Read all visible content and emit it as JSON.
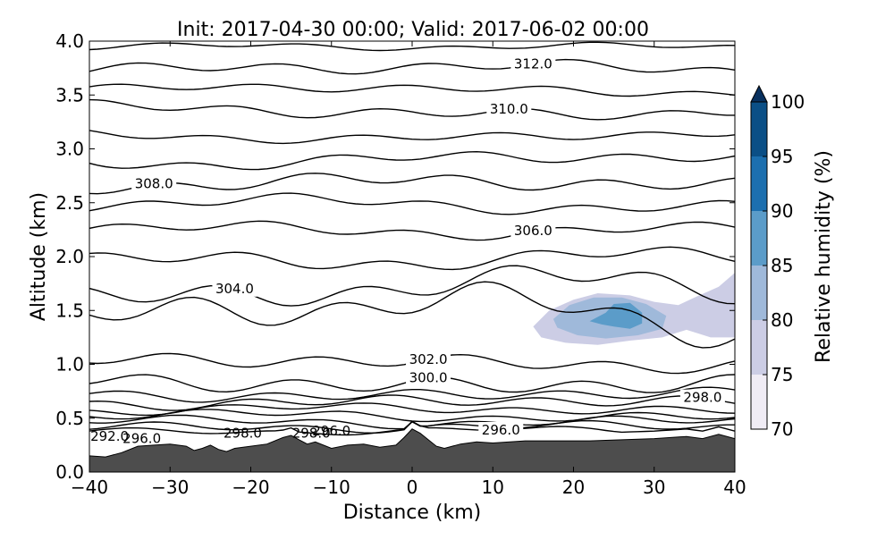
{
  "chart_data": {
    "type": "contour",
    "title": "Init: 2017-04-30 00:00; Valid: 2017-06-02 00:00",
    "xlabel": "Distance (km)",
    "ylabel": "Altitude (km)",
    "xlim": [
      -40,
      40
    ],
    "ylim": [
      0,
      4
    ],
    "xticks": [
      "−40",
      "−30",
      "−20",
      "−10",
      "0",
      "10",
      "20",
      "30",
      "40"
    ],
    "yticks": [
      "0.0",
      "0.5",
      "1.0",
      "1.5",
      "2.0",
      "2.5",
      "3.0",
      "3.5",
      "4.0"
    ],
    "colorbar": {
      "label": "Relative humidity (%)",
      "ticks": [
        "70",
        "75",
        "80",
        "85",
        "90",
        "95",
        "100"
      ],
      "levels": [
        70,
        75,
        80,
        85,
        90,
        95,
        100
      ],
      "colors": [
        "#f0ecf5",
        "#cccde5",
        "#9fb9da",
        "#5b9cc9",
        "#1c6faf",
        "#0b4f86"
      ],
      "extend_color": "#08305e"
    },
    "terrain_color": "#4d4d4d",
    "terrain": [
      [
        -40,
        0.15
      ],
      [
        -38,
        0.14
      ],
      [
        -36,
        0.18
      ],
      [
        -34,
        0.24
      ],
      [
        -32,
        0.25
      ],
      [
        -30,
        0.26
      ],
      [
        -28,
        0.24
      ],
      [
        -27,
        0.2
      ],
      [
        -26,
        0.22
      ],
      [
        -25,
        0.25
      ],
      [
        -24,
        0.21
      ],
      [
        -23,
        0.19
      ],
      [
        -22,
        0.22
      ],
      [
        -20,
        0.24
      ],
      [
        -18,
        0.26
      ],
      [
        -16,
        0.32
      ],
      [
        -15,
        0.34
      ],
      [
        -14,
        0.3
      ],
      [
        -13,
        0.26
      ],
      [
        -12,
        0.28
      ],
      [
        -11,
        0.25
      ],
      [
        -10,
        0.22
      ],
      [
        -8,
        0.25
      ],
      [
        -6,
        0.26
      ],
      [
        -4,
        0.23
      ],
      [
        -2,
        0.25
      ],
      [
        -1,
        0.32
      ],
      [
        0,
        0.4
      ],
      [
        1,
        0.36
      ],
      [
        2,
        0.3
      ],
      [
        3,
        0.24
      ],
      [
        4,
        0.22
      ],
      [
        6,
        0.26
      ],
      [
        8,
        0.28
      ],
      [
        10,
        0.27
      ],
      [
        14,
        0.29
      ],
      [
        18,
        0.29
      ],
      [
        22,
        0.29
      ],
      [
        26,
        0.3
      ],
      [
        30,
        0.31
      ],
      [
        34,
        0.33
      ],
      [
        36,
        0.31
      ],
      [
        38,
        0.35
      ],
      [
        40,
        0.31
      ]
    ],
    "rh_regions": [
      {
        "level": 75,
        "points": [
          [
            15,
            1.35
          ],
          [
            17,
            1.5
          ],
          [
            20,
            1.6
          ],
          [
            23,
            1.66
          ],
          [
            27,
            1.64
          ],
          [
            30,
            1.58
          ],
          [
            33,
            1.55
          ],
          [
            35,
            1.62
          ],
          [
            38,
            1.72
          ],
          [
            40,
            1.85
          ],
          [
            40,
            1.25
          ],
          [
            37,
            1.25
          ],
          [
            34,
            1.32
          ],
          [
            31,
            1.25
          ],
          [
            27,
            1.22
          ],
          [
            23,
            1.18
          ],
          [
            19,
            1.2
          ],
          [
            16,
            1.25
          ]
        ]
      },
      {
        "level": 80,
        "points": [
          [
            17.5,
            1.42
          ],
          [
            19.5,
            1.55
          ],
          [
            22.5,
            1.62
          ],
          [
            26,
            1.62
          ],
          [
            29,
            1.56
          ],
          [
            31.5,
            1.45
          ],
          [
            31,
            1.33
          ],
          [
            28,
            1.27
          ],
          [
            24,
            1.24
          ],
          [
            20.5,
            1.27
          ],
          [
            18,
            1.34
          ]
        ]
      },
      {
        "level": 85,
        "points": [
          [
            22,
            1.4
          ],
          [
            24,
            1.48
          ],
          [
            25,
            1.56
          ],
          [
            27,
            1.57
          ],
          [
            28.5,
            1.48
          ],
          [
            28.5,
            1.38
          ],
          [
            27,
            1.33
          ],
          [
            25,
            1.35
          ],
          [
            23.5,
            1.37
          ]
        ]
      }
    ],
    "isentropes": [
      {
        "base": 3.95,
        "amp": [
          0.02,
          -0.02,
          0.0
        ],
        "label": ""
      },
      {
        "base": 3.75,
        "amp": [
          0.04,
          -0.03,
          0.02
        ],
        "label": "312.0",
        "label_x": 15
      },
      {
        "base": 3.55,
        "amp": [
          0.03,
          -0.02,
          0.03
        ],
        "label": ""
      },
      {
        "base": 3.35,
        "amp": [
          0.04,
          -0.03,
          0.04
        ],
        "label": "310.0",
        "label_x": 12
      },
      {
        "base": 3.12,
        "amp": [
          0.03,
          -0.02,
          0.03
        ],
        "label": ""
      },
      {
        "base": 2.9,
        "amp": [
          0.04,
          -0.03,
          0.04
        ],
        "label": ""
      },
      {
        "base": 2.68,
        "amp": [
          0.05,
          -0.03,
          0.03
        ],
        "label": "308.0",
        "label_x": -32
      },
      {
        "base": 2.48,
        "amp": [
          0.04,
          -0.03,
          0.04
        ],
        "label": ""
      },
      {
        "base": 2.25,
        "amp": [
          0.04,
          -0.03,
          0.03
        ],
        "label": "306.0",
        "label_x": 15
      },
      {
        "base": 1.98,
        "amp": [
          0.05,
          -0.04,
          0.04
        ],
        "label": ""
      },
      {
        "base": 1.7,
        "amp": [
          0.08,
          -0.06,
          0.1
        ],
        "label": "304.0",
        "label_x": -22
      },
      {
        "base": 1.48,
        "amp": [
          0.1,
          -0.12,
          0.12
        ],
        "label": ""
      },
      {
        "base": 1.02,
        "amp": [
          0.05,
          -0.03,
          0.03
        ],
        "label": "302.0",
        "label_x": 2
      },
      {
        "base": 0.82,
        "amp": [
          0.06,
          -0.03,
          0.03
        ],
        "label": "300.0",
        "label_x": 2
      },
      {
        "base": 0.72,
        "amp": [
          0.04,
          -0.02,
          0.02
        ],
        "label": ""
      },
      {
        "base": 0.65,
        "amp": [
          0.04,
          -0.02,
          0.02
        ],
        "label": "298.0",
        "label_x": 36
      },
      {
        "base": 0.58,
        "amp": [
          0.03,
          -0.02,
          0.02
        ],
        "label": ""
      },
      {
        "base": 0.52,
        "amp": [
          0.03,
          -0.02,
          0.02
        ],
        "label": ""
      },
      {
        "base": 0.47,
        "amp": [
          0.03,
          -0.02,
          0.02
        ],
        "label": ""
      },
      {
        "base": 0.42,
        "amp": [
          0.03,
          -0.02,
          0.01
        ],
        "label": ""
      },
      {
        "base": 0.38,
        "amp": [
          0.02,
          -0.02,
          0.01
        ],
        "label": "296.0",
        "label_x": 11
      }
    ],
    "surface_labels": [
      {
        "text": "292.0",
        "x": -37.5,
        "y": 0.33
      },
      {
        "text": "296.0",
        "x": -33.5,
        "y": 0.31
      },
      {
        "text": "298.0",
        "x": -21,
        "y": 0.36
      },
      {
        "text": "298.0",
        "x": -12.5,
        "y": 0.36
      },
      {
        "text": "296.0",
        "x": -10,
        "y": 0.38
      }
    ]
  }
}
